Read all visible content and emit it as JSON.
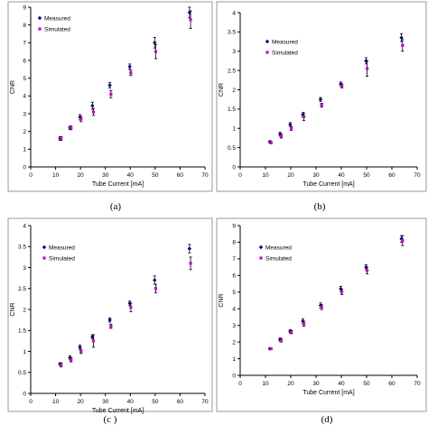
{
  "colors": {
    "measured": "#000080",
    "simulated": "#cc00cc",
    "frame": "#9a9a9a"
  },
  "chart_data": [
    {
      "type": "scatter",
      "caption": "(a)",
      "xlabel": "Tube Current [mA]",
      "ylabel": "CNR",
      "xlim": [
        0,
        70
      ],
      "ylim": [
        0,
        9
      ],
      "xticks": [
        0,
        10,
        20,
        30,
        40,
        50,
        60,
        70
      ],
      "yticks": [
        0,
        1,
        2,
        3,
        4,
        5,
        6,
        7,
        8,
        9
      ],
      "legend_position": "top-left",
      "series": [
        {
          "name": "Measured",
          "x": [
            12,
            16,
            20,
            25,
            32,
            40,
            50,
            64
          ],
          "y": [
            1.6,
            2.2,
            2.8,
            3.45,
            4.6,
            5.65,
            7.0,
            8.7
          ],
          "err": [
            0.1,
            0.1,
            0.15,
            0.2,
            0.15,
            0.15,
            0.3,
            0.3
          ]
        },
        {
          "name": "Simulated",
          "x": [
            12,
            16,
            20,
            25,
            32,
            40,
            50,
            64
          ],
          "y": [
            1.6,
            2.2,
            2.7,
            3.1,
            4.1,
            5.3,
            6.5,
            8.3
          ],
          "err": [
            0.1,
            0.1,
            0.15,
            0.2,
            0.2,
            0.15,
            0.4,
            0.5
          ]
        }
      ]
    },
    {
      "type": "scatter",
      "caption": "(b)",
      "xlabel": "Tube Current [mA]",
      "ylabel": "CNR",
      "xlim": [
        0,
        70
      ],
      "ylim": [
        0,
        4
      ],
      "xticks": [
        0,
        10,
        20,
        30,
        40,
        50,
        60,
        70
      ],
      "yticks": [
        0,
        0.5,
        1,
        1.5,
        2,
        2.5,
        3,
        3.5,
        4
      ],
      "legend_position": "top-left",
      "series": [
        {
          "name": "Measured",
          "x": [
            12,
            16,
            20,
            25,
            32,
            40,
            50,
            64
          ],
          "y": [
            0.65,
            0.85,
            1.1,
            1.35,
            1.75,
            2.15,
            2.75,
            3.35
          ],
          "err": [
            0.03,
            0.05,
            0.05,
            0.06,
            0.05,
            0.05,
            0.08,
            0.1
          ]
        },
        {
          "name": "Simulated",
          "x": [
            12,
            16,
            20,
            25,
            32,
            40,
            50,
            64
          ],
          "y": [
            0.63,
            0.8,
            1.0,
            1.3,
            1.6,
            2.1,
            2.55,
            3.15
          ],
          "err": [
            0.03,
            0.05,
            0.05,
            0.1,
            0.05,
            0.05,
            0.2,
            0.15
          ]
        }
      ]
    },
    {
      "type": "scatter",
      "caption": "(c )",
      "xlabel": "Tube Current [mA]",
      "ylabel": "CNR",
      "xlim": [
        0,
        70
      ],
      "ylim": [
        0,
        4
      ],
      "xticks": [
        0,
        10,
        20,
        30,
        40,
        50,
        60,
        70
      ],
      "yticks": [
        0,
        0.5,
        1,
        1.5,
        2,
        2.5,
        3,
        3.5,
        4
      ],
      "legend_position": "top-left",
      "series": [
        {
          "name": "Measured",
          "x": [
            12,
            16,
            20,
            25,
            32,
            40,
            50,
            64
          ],
          "y": [
            0.7,
            0.85,
            1.1,
            1.35,
            1.75,
            2.15,
            2.7,
            3.45
          ],
          "err": [
            0.03,
            0.05,
            0.05,
            0.05,
            0.05,
            0.05,
            0.1,
            0.1
          ]
        },
        {
          "name": "Simulated",
          "x": [
            12,
            16,
            20,
            25,
            32,
            40,
            50,
            64
          ],
          "y": [
            0.68,
            0.8,
            1.0,
            1.25,
            1.6,
            2.05,
            2.5,
            3.1
          ],
          "err": [
            0.05,
            0.05,
            0.05,
            0.15,
            0.05,
            0.1,
            0.1,
            0.15
          ]
        }
      ]
    },
    {
      "type": "scatter",
      "caption": "(d)",
      "xlabel": "Tube Current [mA]",
      "ylabel": "CNR",
      "xlim": [
        0,
        70
      ],
      "ylim": [
        0,
        9
      ],
      "xticks": [
        0,
        10,
        20,
        30,
        40,
        50,
        60,
        70
      ],
      "yticks": [
        0,
        1,
        2,
        3,
        4,
        5,
        6,
        7,
        8,
        9
      ],
      "legend_position": "top-left",
      "series": [
        {
          "name": "Measured",
          "x": [
            12,
            16,
            20,
            25,
            32,
            40,
            50,
            64
          ],
          "y": [
            1.6,
            2.15,
            2.65,
            3.25,
            4.2,
            5.2,
            6.5,
            8.2
          ],
          "err": [
            0.05,
            0.1,
            0.1,
            0.15,
            0.15,
            0.15,
            0.15,
            0.2
          ]
        },
        {
          "name": "Simulated",
          "x": [
            12,
            16,
            20,
            25,
            32,
            40,
            50,
            64
          ],
          "y": [
            1.6,
            2.1,
            2.6,
            3.1,
            4.1,
            5.0,
            6.3,
            8.1
          ],
          "err": [
            0.05,
            0.1,
            0.1,
            0.15,
            0.15,
            0.15,
            0.2,
            0.3
          ]
        }
      ]
    }
  ]
}
